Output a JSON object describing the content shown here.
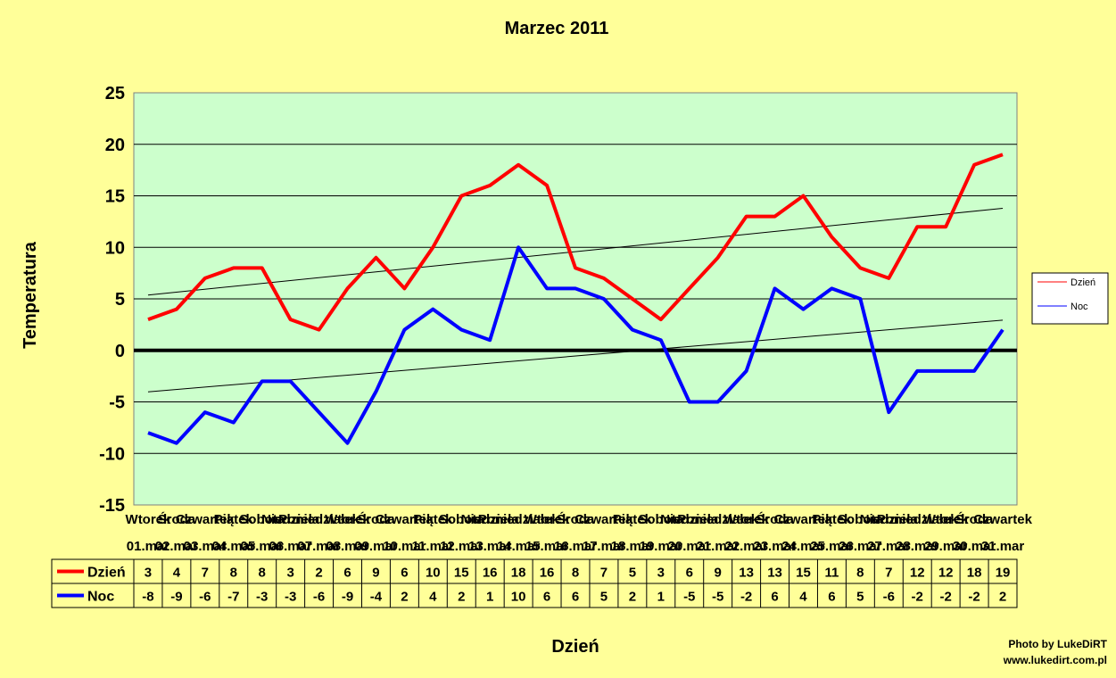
{
  "chart_data": {
    "type": "line",
    "title": "Marzec 2011",
    "xlabel": "Dzień",
    "ylabel": "Temperatura",
    "ylim": [
      -15,
      25
    ],
    "yticks": [
      25,
      20,
      15,
      10,
      5,
      0,
      -5,
      -10,
      -15
    ],
    "grid": true,
    "legend": "right",
    "categories_day": [
      "Wtorek",
      "Środa",
      "Czwartek",
      "Piątek",
      "Sobota",
      "Niedziela",
      "Poniedziałek",
      "Wtorek",
      "Środa",
      "Czwartek",
      "Piątek",
      "Sobota",
      "Niedziela",
      "Poniedziałek",
      "Wtorek",
      "Środa",
      "Czwartek",
      "Piątek",
      "Sobota",
      "Niedziela",
      "Poniedziałek",
      "Wtorek",
      "Środa",
      "Czwartek",
      "Piątek",
      "Sobota",
      "Niedziela",
      "Poniedziałek",
      "Wtorek",
      "Środa",
      "Czwartek"
    ],
    "categories_date": [
      "01.mar",
      "02.mar",
      "03.mar",
      "04.mar",
      "05.mar",
      "06.mar",
      "07.mar",
      "08.mar",
      "09.mar",
      "10.mar",
      "11.mar",
      "12.mar",
      "13.mar",
      "14.mar",
      "15.mar",
      "16.mar",
      "17.mar",
      "18.mar",
      "19.mar",
      "20.mar",
      "21.mar",
      "22.mar",
      "23.mar",
      "24.mar",
      "25.mar",
      "26.mar",
      "27.mar",
      "28.mar",
      "29.mar",
      "30.mar",
      "31.mar"
    ],
    "series": [
      {
        "name": "Dzień",
        "color": "#ff0000",
        "values": [
          3,
          4,
          7,
          8,
          8,
          3,
          2,
          6,
          9,
          6,
          10,
          15,
          16,
          18,
          16,
          8,
          7,
          5,
          3,
          6,
          9,
          13,
          13,
          15,
          11,
          8,
          7,
          12,
          12,
          18,
          19
        ]
      },
      {
        "name": "Noc",
        "color": "#0000ff",
        "values": [
          -8,
          -9,
          -6,
          -7,
          -3,
          -3,
          -6,
          -9,
          -4,
          2,
          4,
          2,
          1,
          10,
          6,
          6,
          5,
          2,
          1,
          -5,
          -5,
          -2,
          6,
          4,
          6,
          5,
          -6,
          -2,
          -2,
          -2,
          2
        ]
      }
    ],
    "trendlines": true
  },
  "credits": {
    "line1": "Photo by LukeDiRT",
    "line2": "www.lukedirt.com.pl"
  }
}
